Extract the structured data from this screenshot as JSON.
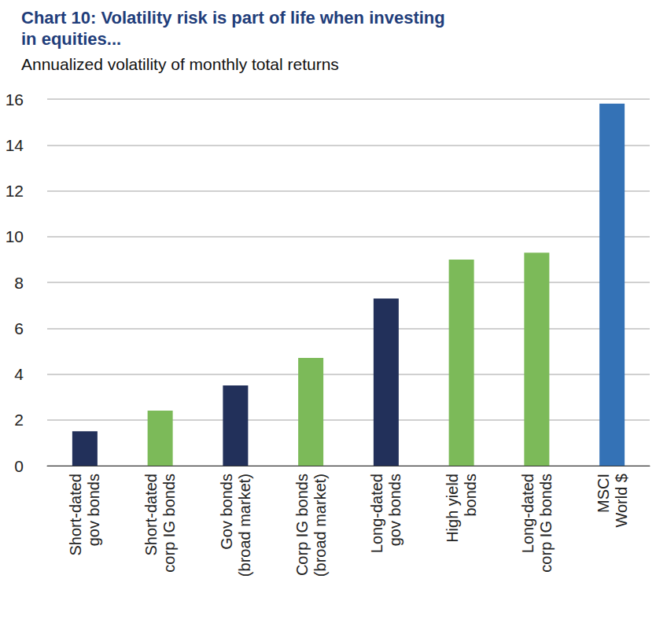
{
  "chart_data": {
    "type": "bar",
    "title": "Chart 10: Volatility risk is part of life when investing\nin equities...",
    "subtitle": "Annualized volatility of monthly total returns",
    "categories": [
      "Short-dated\ngov bonds",
      "Short-dated\ncorp IG bonds",
      "Gov bonds\n(broad market)",
      "Corp IG bonds\n(broad market)",
      "Long-dated\ngov bonds",
      "High yield\nbonds",
      "Long-dated\ncorp IG bonds",
      "MSCI\nWorld $"
    ],
    "values": [
      1.5,
      2.4,
      3.5,
      4.7,
      7.3,
      9.0,
      9.3,
      15.8
    ],
    "colors": [
      "#22305a",
      "#7cba59",
      "#22305a",
      "#7cba59",
      "#22305a",
      "#7cba59",
      "#7cba59",
      "#3472b6"
    ],
    "ylim": [
      0,
      16
    ],
    "yticks": [
      0,
      2,
      4,
      6,
      8,
      10,
      12,
      14,
      16
    ],
    "grid": true
  }
}
